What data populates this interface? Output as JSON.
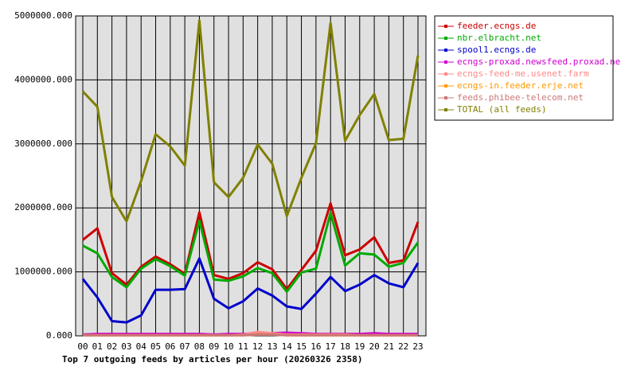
{
  "chart_data": {
    "type": "line",
    "title": "Top 7 outgoing feeds by articles per hour (20260326 2358)",
    "categories": [
      "00",
      "01",
      "02",
      "03",
      "04",
      "05",
      "06",
      "07",
      "08",
      "09",
      "10",
      "11",
      "12",
      "13",
      "14",
      "15",
      "16",
      "17",
      "18",
      "19",
      "20",
      "21",
      "22",
      "23"
    ],
    "ylim": [
      0,
      5000000
    ],
    "yticks": [
      {
        "value": 0,
        "label": "0.000"
      },
      {
        "value": 1000000,
        "label": "1000000.000"
      },
      {
        "value": 2000000,
        "label": "2000000.000"
      },
      {
        "value": 3000000,
        "label": "3000000.000"
      },
      {
        "value": 4000000,
        "label": "4000000.000"
      },
      {
        "value": 5000000,
        "label": "5000000.000"
      }
    ],
    "grid": true,
    "legend": "right",
    "series": [
      {
        "name": "feeder.ecngs.de",
        "color": "#cc0000",
        "values": [
          1500000,
          1680000,
          980000,
          800000,
          1080000,
          1240000,
          1120000,
          970000,
          1930000,
          950000,
          890000,
          980000,
          1150000,
          1040000,
          730000,
          1030000,
          1330000,
          2070000,
          1260000,
          1350000,
          1540000,
          1140000,
          1180000,
          1780000
        ]
      },
      {
        "name": "nbr.elbracht.net",
        "color": "#00aa00",
        "values": [
          1410000,
          1290000,
          920000,
          760000,
          1050000,
          1200000,
          1090000,
          940000,
          1800000,
          880000,
          860000,
          930000,
          1060000,
          980000,
          690000,
          990000,
          1050000,
          1920000,
          1100000,
          1290000,
          1270000,
          1080000,
          1140000,
          1460000
        ]
      },
      {
        "name": "spool1.ecngs.de",
        "color": "#0000cc",
        "values": [
          890000,
          600000,
          230000,
          210000,
          320000,
          720000,
          720000,
          730000,
          1210000,
          580000,
          430000,
          540000,
          740000,
          630000,
          460000,
          420000,
          660000,
          920000,
          700000,
          800000,
          950000,
          820000,
          760000,
          1140000
        ]
      },
      {
        "name": "ecngs-proxad.newsfeed.proxad.net",
        "color": "#cc00cc",
        "values": [
          20000,
          30000,
          30000,
          30000,
          30000,
          30000,
          30000,
          30000,
          30000,
          20000,
          30000,
          30000,
          40000,
          40000,
          50000,
          40000,
          30000,
          30000,
          30000,
          30000,
          40000,
          30000,
          30000,
          30000
        ]
      },
      {
        "name": "ecngs-feed-me.usenet.farm",
        "color": "#ff8888",
        "values": [
          10000,
          10000,
          10000,
          10000,
          10000,
          10000,
          10000,
          10000,
          10000,
          10000,
          10000,
          20000,
          60000,
          40000,
          20000,
          20000,
          20000,
          20000,
          20000,
          10000,
          10000,
          10000,
          10000,
          10000
        ]
      },
      {
        "name": "ecngs-in.feeder.erje.net",
        "color": "#ff9900",
        "values": [
          10000,
          10000,
          10000,
          10000,
          10000,
          10000,
          10000,
          10000,
          10000,
          10000,
          10000,
          10000,
          20000,
          20000,
          10000,
          10000,
          10000,
          10000,
          10000,
          10000,
          10000,
          10000,
          10000,
          10000
        ]
      },
      {
        "name": "feeds.phibee-telecom.net",
        "color": "#cc7777",
        "values": [
          10000,
          10000,
          10000,
          10000,
          10000,
          10000,
          10000,
          10000,
          10000,
          10000,
          10000,
          10000,
          20000,
          20000,
          10000,
          10000,
          10000,
          10000,
          10000,
          10000,
          10000,
          10000,
          10000,
          10000
        ]
      },
      {
        "name": "TOTAL (all feeds)",
        "color": "#808000",
        "values": [
          3820000,
          3580000,
          2170000,
          1790000,
          2420000,
          3150000,
          2960000,
          2660000,
          4930000,
          2400000,
          2170000,
          2470000,
          2990000,
          2690000,
          1870000,
          2470000,
          3010000,
          4890000,
          3050000,
          3450000,
          3780000,
          3060000,
          3080000,
          4380000
        ]
      }
    ]
  }
}
